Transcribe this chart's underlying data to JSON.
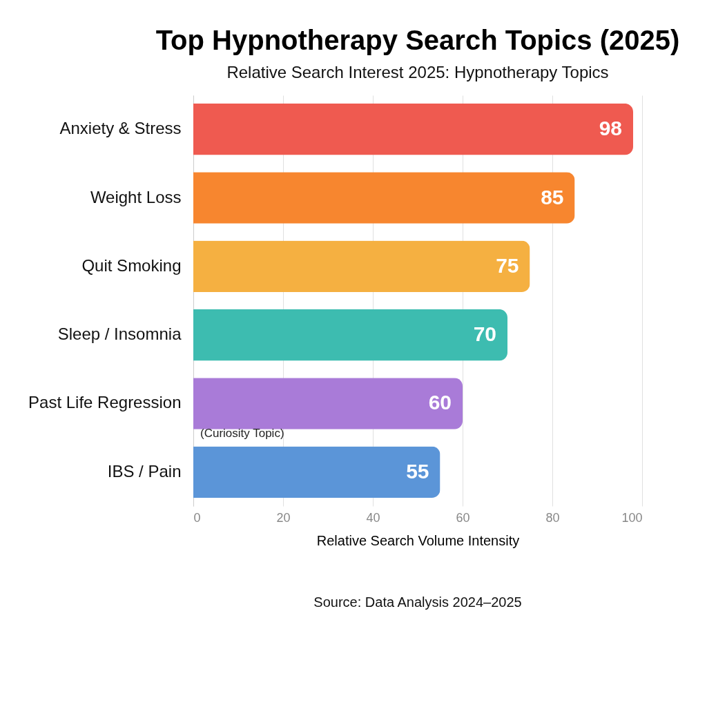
{
  "chart_data": {
    "type": "bar",
    "orientation": "horizontal",
    "title": "Top Hypnotherapy Search Topics (2025)",
    "subtitle": "Relative Search Interest 2025: Hypnotherapy Topics",
    "xlabel": "Relative Search Volume Intensity",
    "categories": [
      "Anxiety & Stress",
      "Weight Loss",
      "Quit Smoking",
      "Sleep / Insomnia",
      "Past Life Regression",
      "IBS / Pain"
    ],
    "values": [
      98,
      85,
      75,
      70,
      60,
      55
    ],
    "colors": [
      "#ef5a50",
      "#f7862f",
      "#f5b041",
      "#3dbcb0",
      "#a97bd8",
      "#5b95d8"
    ],
    "xlim": [
      0,
      100
    ],
    "xticks": [
      0,
      20,
      40,
      60,
      80,
      100
    ],
    "grid": "x",
    "data_labels": true,
    "annotations": [
      {
        "text": "(Curiosity Topic)",
        "x": 0,
        "y": "Past Life Regression"
      },
      "Source: Data Analysis 2024–2025"
    ]
  }
}
